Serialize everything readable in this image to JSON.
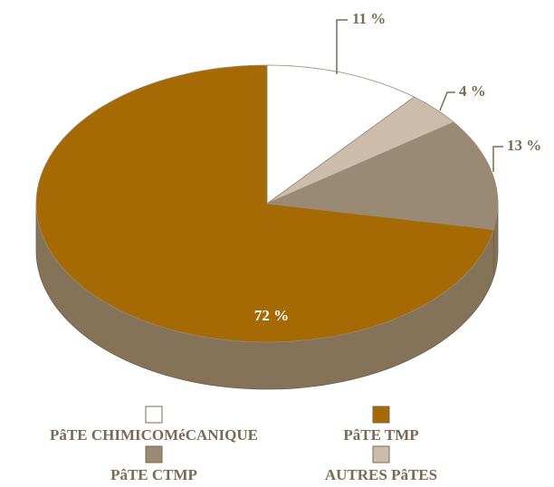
{
  "chart_data": {
    "type": "pie",
    "categories": [
      "PâTE CHIMICOMéCANIQUE",
      "AUTRES PâTES",
      "PâTE CTMP",
      "PâTE TMP"
    ],
    "values": [
      11,
      4,
      13,
      72
    ],
    "value_labels": [
      "11 %",
      "4 %",
      "13 %",
      "72 %"
    ],
    "colors": [
      "#ffffff",
      "#cbbcac",
      "#9a8a75",
      "#a66a05"
    ],
    "legend": "bottom"
  }
}
